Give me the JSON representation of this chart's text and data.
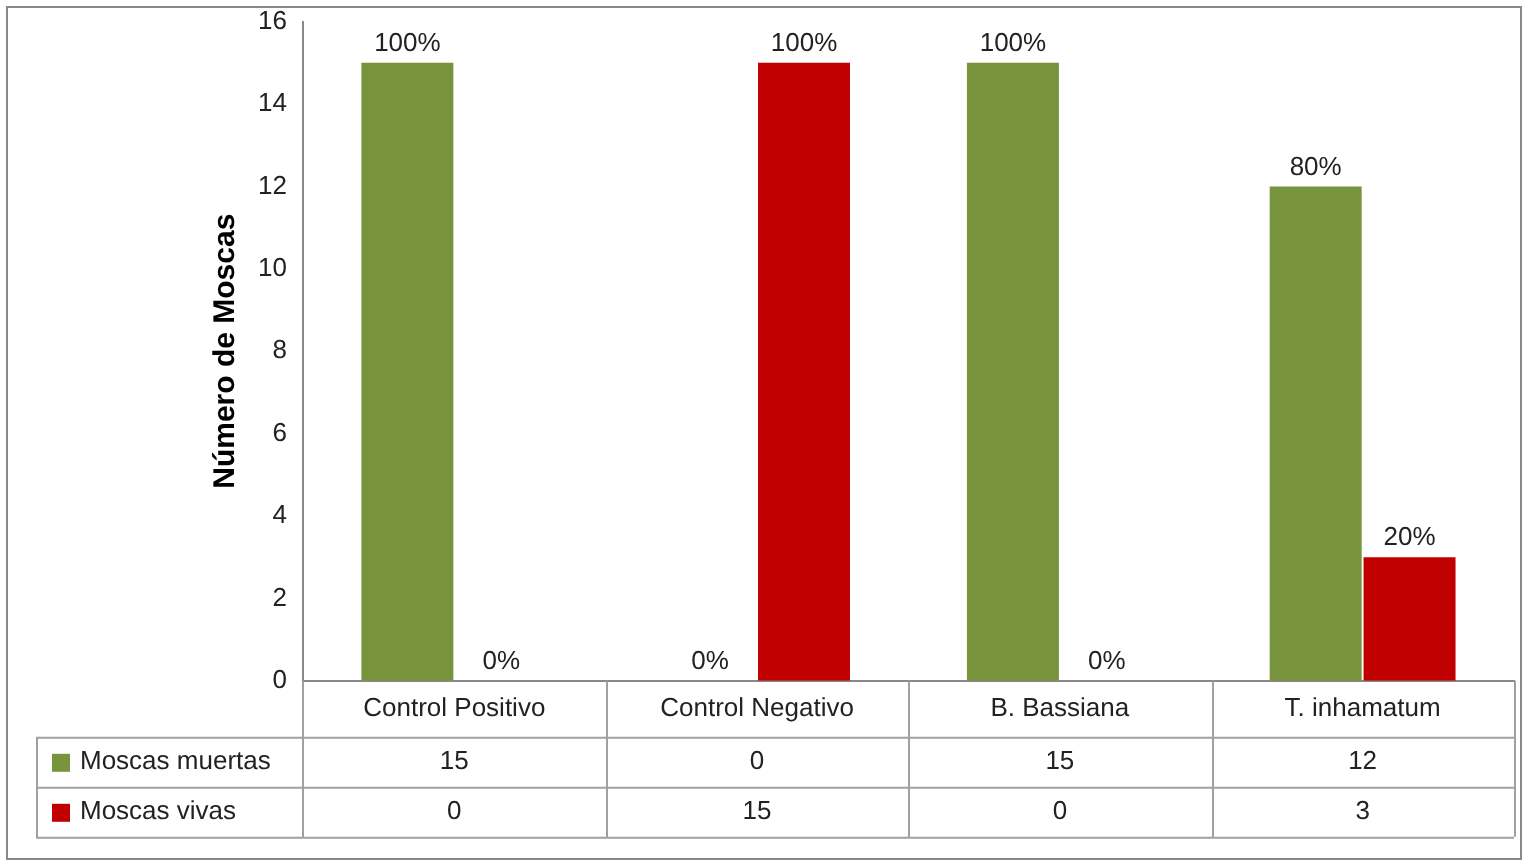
{
  "chart_data": {
    "type": "bar",
    "ylabel": "Número de Moscas",
    "categories": [
      "Control Positivo",
      "Control Negativo",
      "B. Bassiana",
      "T. inhamatum"
    ],
    "series": [
      {
        "name": "Moscas muertas",
        "color": "#77933c",
        "values": [
          15,
          0,
          15,
          12
        ]
      },
      {
        "name": "Moscas vivas",
        "color": "#c00000",
        "values": [
          0,
          15,
          0,
          3
        ]
      }
    ],
    "annotations": [
      {
        "text": "100%",
        "x": "Control Positivo",
        "y": 15
      },
      {
        "text": "0%",
        "x": "Control Positivo",
        "y": 0
      },
      {
        "text": "0%",
        "x": "Control Negativo",
        "y": 0
      },
      {
        "text": "100%",
        "x": "Control Negativo",
        "y": 15
      },
      {
        "text": "100%",
        "x": "B. Bassiana",
        "y": 15
      },
      {
        "text": "0%",
        "x": "B. Bassiana",
        "y": 0
      },
      {
        "text": "80%",
        "x": "T. inhamatum",
        "y": 12
      },
      {
        "text": "20%",
        "x": "T. inhamatum",
        "y": 3
      }
    ],
    "ylim": [
      0,
      16
    ],
    "yticks": [
      0,
      2,
      4,
      6,
      8,
      10,
      12,
      14,
      16
    ],
    "grid": false,
    "legend": "bottom",
    "data_labels": true
  }
}
